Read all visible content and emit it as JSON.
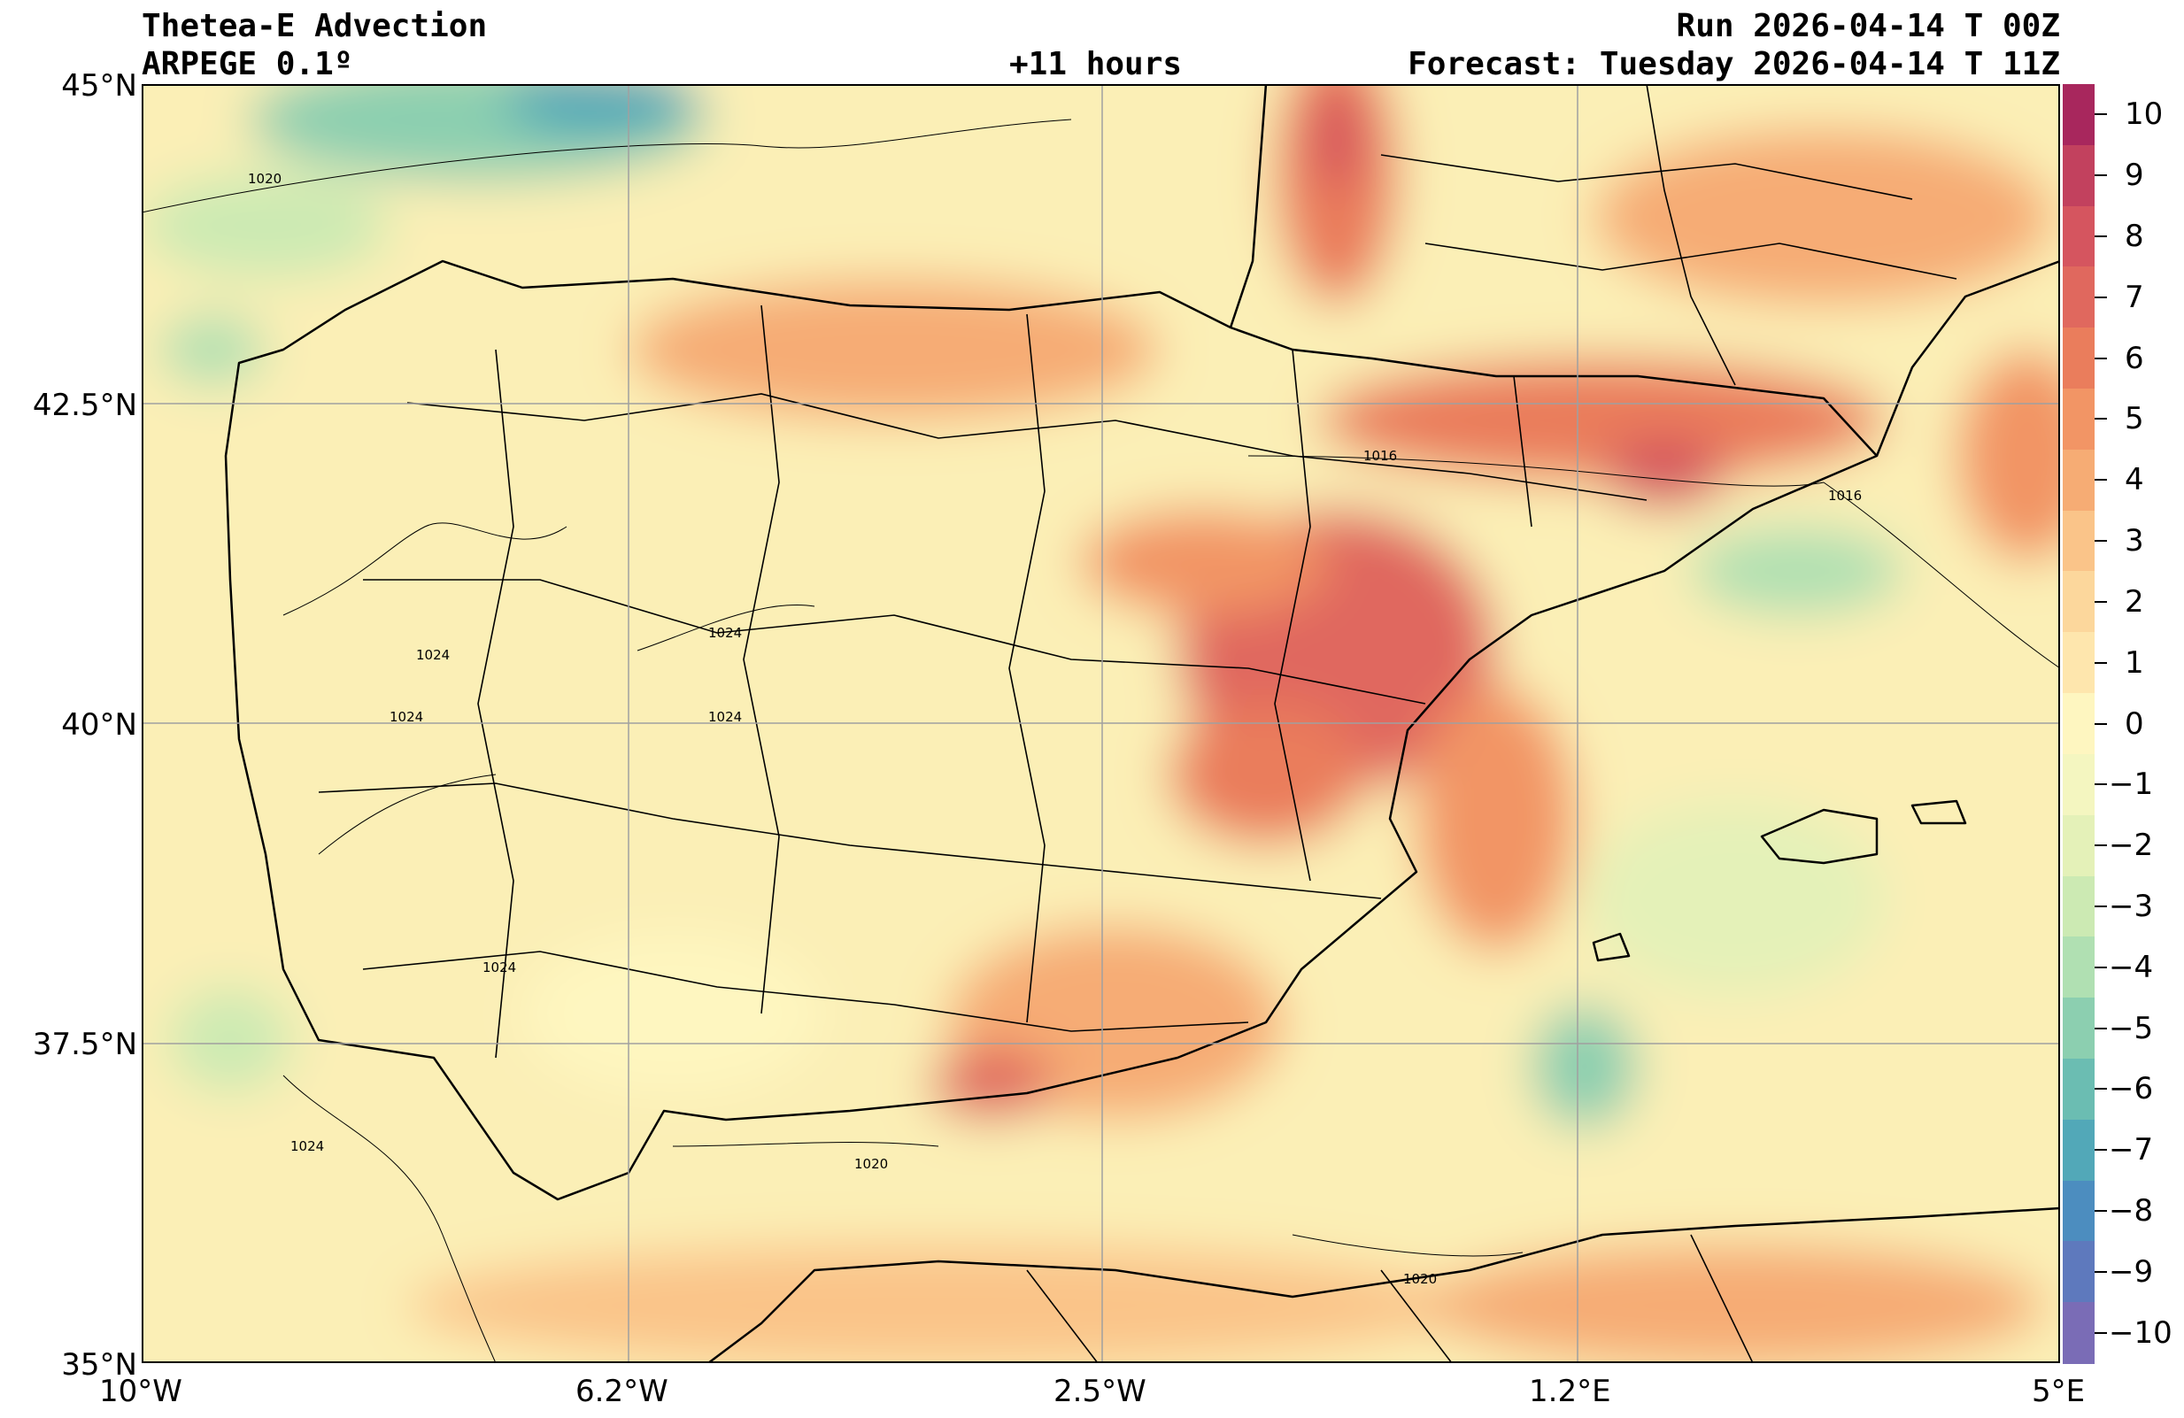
{
  "header": {
    "title": "Thetea-E Advection",
    "model": "ARPEGE 0.1º",
    "lead": "+11 hours",
    "run": "Run 2026-04-14 T 00Z",
    "forecast": "Forecast: Tuesday 2026-04-14 T 11Z"
  },
  "axes": {
    "lat_ticks": [
      "45°N",
      "42.5°N",
      "40°N",
      "37.5°N",
      "35°N"
    ],
    "lon_ticks": [
      "10°W",
      "6.2°W",
      "2.5°W",
      "1.2°E",
      "5°E"
    ]
  },
  "isobar_labels": [
    "1020",
    "1024",
    "1024",
    "1024",
    "1024",
    "1024",
    "1024",
    "1020",
    "1016",
    "1016",
    "1020"
  ],
  "colorbar": {
    "labels": [
      "10",
      "9",
      "8",
      "7",
      "6",
      "5",
      "4",
      "3",
      "2",
      "1",
      "0",
      "−1",
      "−2",
      "−3",
      "−4",
      "−5",
      "−6",
      "−7",
      "−8",
      "−9",
      "−10"
    ],
    "colors": [
      "#a8275d",
      "#c2415e",
      "#d5555f",
      "#e0685e",
      "#ea7d5c",
      "#f29565",
      "#f6ac74",
      "#fac489",
      "#fcd79c",
      "#fee6ad",
      "#fef6c0",
      "#f4f6c0",
      "#e4f1b8",
      "#cceab3",
      "#b0e0b2",
      "#8ccfb0",
      "#6bbdb2",
      "#52a8b8",
      "#4c8dbf",
      "#5e79bd",
      "#7a6cb6"
    ]
  }
}
